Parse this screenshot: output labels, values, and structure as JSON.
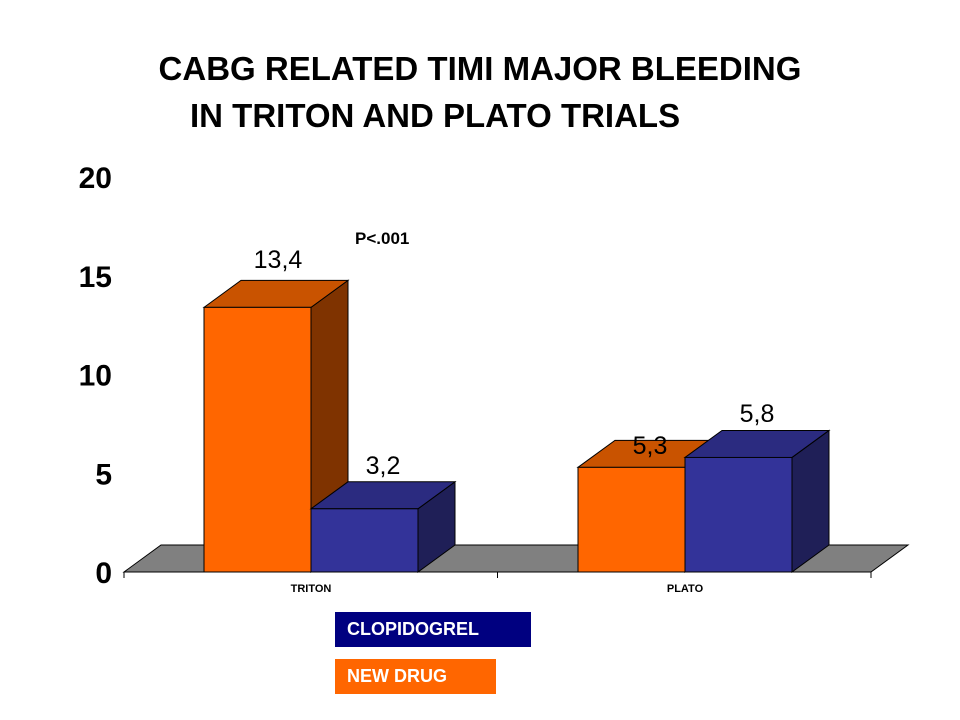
{
  "colors": {
    "clopidogrel_front": "#333399",
    "clopidogrel_top": "#2B2B80",
    "clopidogrel_side": "#1F1F57",
    "newdrug_front": "#FF6600",
    "newdrug_top": "#C95300",
    "newdrug_side": "#7F3300",
    "floor": "#808080",
    "legend_clopidogrel": "#000080",
    "legend_newdrug": "#FF6600"
  },
  "chart_data": {
    "type": "bar",
    "title": "CABG RELATED TIMI MAJOR BLEEDING IN TRITON AND PLATO TRIALS",
    "title_lines": [
      "CABG RELATED TIMI MAJOR BLEEDING",
      "IN TRITON AND PLATO TRIALS"
    ],
    "categories": [
      "TRITON",
      "PLATO"
    ],
    "series": [
      {
        "name": "NEW DRUG",
        "values": [
          13.4,
          5.3
        ],
        "labels": [
          "13,4",
          "5,3"
        ]
      },
      {
        "name": "CLOPIDOGREL",
        "values": [
          3.2,
          5.8
        ],
        "labels": [
          "3,2",
          "5,8"
        ]
      }
    ],
    "ylim": [
      0,
      20
    ],
    "yticks": [
      "0",
      "5",
      "10",
      "15",
      "20"
    ],
    "ytick_values": [
      0,
      5,
      10,
      15,
      20
    ],
    "annotation": "P<.001",
    "legend": [
      "CLOPIDOGREL",
      "NEW DRUG"
    ],
    "legend_position": "bottom",
    "grid": false,
    "three_d": true
  }
}
